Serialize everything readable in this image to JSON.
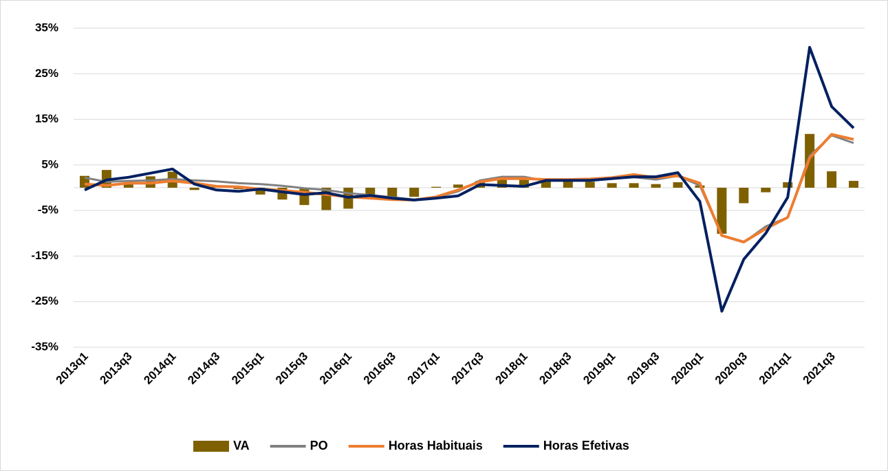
{
  "chart_data": {
    "type": "bar-line",
    "categories": [
      "2013q1",
      null,
      "2013q3",
      null,
      "2014q1",
      null,
      "2014q3",
      null,
      "2015q1",
      null,
      "2015q3",
      null,
      "2016q1",
      null,
      "2016q3",
      null,
      "2017q1",
      null,
      "2017q3",
      null,
      "2018q1",
      null,
      "2018q3",
      null,
      "2019q1",
      null,
      "2019q3",
      null,
      "2020q1",
      null,
      "2020q3",
      null,
      "2021q1",
      null,
      "2021q3",
      null
    ],
    "series": [
      {
        "name": "VA",
        "type": "bar",
        "color": "#7f6000",
        "values": [
          2.6,
          3.9,
          1.0,
          2.5,
          3.5,
          -0.5,
          0.2,
          -0.3,
          -1.5,
          -2.6,
          -3.8,
          -4.9,
          -4.6,
          -2.0,
          -2.2,
          -2.0,
          0.2,
          0.7,
          1.5,
          1.8,
          1.8,
          1.5,
          1.4,
          1.3,
          1.0,
          1.0,
          0.8,
          1.2,
          0.5,
          -10.1,
          -3.4,
          -1.0,
          1.2,
          11.8,
          3.6,
          1.5
        ]
      },
      {
        "name": "PO",
        "type": "line",
        "color": "#808080",
        "values": [
          2.2,
          1.3,
          1.5,
          1.6,
          1.9,
          1.6,
          1.4,
          1.0,
          0.8,
          0.4,
          -0.1,
          -0.5,
          -1.2,
          -1.6,
          -2.1,
          -2.6,
          -2.1,
          -0.8,
          1.6,
          2.4,
          2.4,
          1.5,
          1.7,
          1.7,
          2.0,
          2.3,
          1.8,
          2.6,
          0.5,
          -10.5,
          -12.0,
          -8.5,
          -6.5,
          7.0,
          11.5,
          9.8
        ]
      },
      {
        "name": "Horas Habituais",
        "type": "line",
        "color": "#ed7d31",
        "values": [
          0.8,
          0.5,
          1.0,
          1.0,
          1.5,
          1.0,
          0.3,
          0.2,
          -0.3,
          -0.6,
          -1.0,
          -1.5,
          -2.0,
          -2.3,
          -2.6,
          -2.7,
          -2.0,
          -0.5,
          1.3,
          2.0,
          2.0,
          1.8,
          1.8,
          1.9,
          2.2,
          2.9,
          2.2,
          2.6,
          1.0,
          -10.5,
          -11.9,
          -9.0,
          -6.5,
          6.5,
          11.7,
          10.6
        ]
      },
      {
        "name": "Horas Efetivas",
        "type": "line",
        "color": "#002060",
        "values": [
          -0.5,
          1.7,
          2.3,
          3.2,
          4.1,
          0.8,
          -0.5,
          -0.8,
          -0.3,
          -0.9,
          -1.5,
          -1.1,
          -2.1,
          -1.7,
          -2.3,
          -2.7,
          -2.3,
          -1.8,
          0.7,
          0.5,
          0.3,
          1.6,
          1.6,
          1.6,
          2.0,
          2.4,
          2.4,
          3.3,
          -3.0,
          -27.1,
          -15.7,
          -10.0,
          -2.1,
          30.8,
          17.8,
          13.1
        ]
      }
    ],
    "ylim": [
      -35,
      35
    ],
    "yticks": [
      {
        "value": -35,
        "label": "-35%"
      },
      {
        "value": -25,
        "label": "-25%"
      },
      {
        "value": -15,
        "label": "-15%"
      },
      {
        "value": -5,
        "label": "-5%"
      },
      {
        "value": 5,
        "label": "5%"
      },
      {
        "value": 15,
        "label": "15%"
      },
      {
        "value": 25,
        "label": "25%"
      },
      {
        "value": 35,
        "label": "35%"
      }
    ],
    "grid": true,
    "legend": "bottom"
  }
}
